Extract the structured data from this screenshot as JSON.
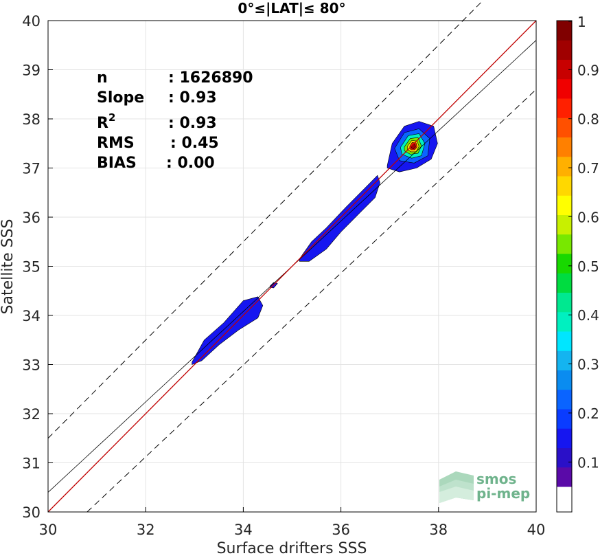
{
  "chart_data": {
    "type": "contour-scatter",
    "title": "0°≤|LAT|≤ 80°",
    "xlabel": "Surface drifters SSS",
    "ylabel": "Satellite SSS",
    "xlim": [
      30,
      40
    ],
    "ylim": [
      30,
      40
    ],
    "x_ticks": [
      30,
      32,
      34,
      36,
      38,
      40
    ],
    "y_ticks": [
      30,
      31,
      32,
      33,
      34,
      35,
      36,
      37,
      38,
      39,
      40
    ],
    "grid": true,
    "stats": [
      {
        "label": "n",
        "value": ": 1626890"
      },
      {
        "label": "Slope",
        "value": ": 0.93"
      },
      {
        "label": "R",
        "sup": "2",
        "value": ": 0.93"
      },
      {
        "label": "RMS",
        "value": ": 0.45"
      },
      {
        "label": "BIAS",
        "value": ": 0.00"
      }
    ],
    "one_to_one_line": {
      "x": [
        30,
        40
      ],
      "y": [
        30,
        40
      ],
      "color": "#c00000"
    },
    "regression_line": {
      "x": [
        30,
        40
      ],
      "y": [
        30.4,
        39.6
      ],
      "color": "#000000"
    },
    "envelope_lines": [
      {
        "x": [
          30,
          40
        ],
        "y": [
          31.5,
          41.5
        ]
      },
      {
        "x": [
          30.8,
          40
        ],
        "y": [
          30,
          38.6
        ]
      }
    ],
    "density_regions": [
      {
        "points": [
          [
            32.95,
            33.05
          ],
          [
            33.2,
            33.5
          ],
          [
            33.6,
            33.85
          ],
          [
            34.0,
            34.3
          ],
          [
            34.3,
            34.38
          ],
          [
            34.4,
            34.2
          ],
          [
            34.3,
            33.95
          ],
          [
            33.9,
            33.7
          ],
          [
            33.5,
            33.4
          ],
          [
            33.15,
            33.08
          ],
          [
            32.95,
            33.0
          ]
        ],
        "level": 0.1
      },
      {
        "points": [
          [
            34.55,
            34.6
          ],
          [
            34.62,
            34.67
          ],
          [
            34.7,
            34.65
          ],
          [
            34.62,
            34.56
          ],
          [
            34.55,
            34.57
          ]
        ],
        "level": 0.1
      },
      {
        "points": [
          [
            35.15,
            35.15
          ],
          [
            35.4,
            35.5
          ],
          [
            35.7,
            35.78
          ],
          [
            36.1,
            36.2
          ],
          [
            36.5,
            36.6
          ],
          [
            36.75,
            36.85
          ],
          [
            36.8,
            36.7
          ],
          [
            36.7,
            36.4
          ],
          [
            36.4,
            36.1
          ],
          [
            36.0,
            35.7
          ],
          [
            35.7,
            35.35
          ],
          [
            35.35,
            35.1
          ],
          [
            35.15,
            35.1
          ]
        ],
        "level": 0.1
      },
      {
        "points": [
          [
            36.95,
            37.05
          ],
          [
            37.05,
            37.5
          ],
          [
            37.3,
            37.85
          ],
          [
            37.6,
            37.95
          ],
          [
            37.9,
            37.85
          ],
          [
            37.98,
            37.5
          ],
          [
            37.85,
            37.18
          ],
          [
            37.55,
            37.0
          ],
          [
            37.2,
            36.92
          ],
          [
            36.95,
            37.0
          ]
        ],
        "level": 0.12
      },
      {
        "points": [
          [
            37.1,
            37.4
          ],
          [
            37.3,
            37.72
          ],
          [
            37.6,
            37.8
          ],
          [
            37.82,
            37.6
          ],
          [
            37.78,
            37.25
          ],
          [
            37.5,
            37.1
          ],
          [
            37.2,
            37.15
          ],
          [
            37.1,
            37.4
          ]
        ],
        "level": 0.2
      },
      {
        "points": [
          [
            37.22,
            37.42
          ],
          [
            37.38,
            37.66
          ],
          [
            37.6,
            37.7
          ],
          [
            37.72,
            37.5
          ],
          [
            37.65,
            37.25
          ],
          [
            37.45,
            37.2
          ],
          [
            37.25,
            37.28
          ],
          [
            37.22,
            37.42
          ]
        ],
        "level": 0.35
      },
      {
        "points": [
          [
            37.3,
            37.43
          ],
          [
            37.42,
            37.6
          ],
          [
            37.58,
            37.62
          ],
          [
            37.65,
            37.45
          ],
          [
            37.58,
            37.3
          ],
          [
            37.42,
            37.28
          ],
          [
            37.3,
            37.35
          ],
          [
            37.3,
            37.43
          ]
        ],
        "level": 0.5
      },
      {
        "points": [
          [
            37.36,
            37.44
          ],
          [
            37.45,
            37.56
          ],
          [
            37.56,
            37.55
          ],
          [
            37.6,
            37.44
          ],
          [
            37.54,
            37.33
          ],
          [
            37.43,
            37.33
          ],
          [
            37.36,
            37.38
          ],
          [
            37.36,
            37.44
          ]
        ],
        "level": 0.65
      },
      {
        "points": [
          [
            37.41,
            37.44
          ],
          [
            37.46,
            37.52
          ],
          [
            37.54,
            37.51
          ],
          [
            37.56,
            37.43
          ],
          [
            37.51,
            37.37
          ],
          [
            37.44,
            37.37
          ],
          [
            37.41,
            37.4
          ],
          [
            37.41,
            37.44
          ]
        ],
        "level": 0.8
      },
      {
        "points": [
          [
            37.44,
            37.44
          ],
          [
            37.48,
            37.49
          ],
          [
            37.52,
            37.48
          ],
          [
            37.53,
            37.43
          ],
          [
            37.49,
            37.39
          ],
          [
            37.45,
            37.4
          ],
          [
            37.44,
            37.44
          ]
        ],
        "level": 0.93
      }
    ],
    "colorbar": {
      "ticks": [
        0.1,
        0.2,
        0.3,
        0.4,
        0.5,
        0.6,
        0.7,
        0.8,
        0.9,
        1
      ],
      "colors": [
        "#5a0aa8",
        "#2a10c8",
        "#1616f0",
        "#0a3cff",
        "#0a64ff",
        "#0a8cf0",
        "#14b4f0",
        "#00e6ff",
        "#00f0c0",
        "#00e890",
        "#00dc40",
        "#18d800",
        "#78e800",
        "#c8f000",
        "#ffff00",
        "#ffd800",
        "#ffb000",
        "#ff8000",
        "#ff5000",
        "#ff2000",
        "#f00000",
        "#c80000",
        "#a00000",
        "#800000"
      ]
    },
    "logo": {
      "line1": "smos",
      "line2": "pi-mep",
      "color": "#6fb38c"
    }
  }
}
